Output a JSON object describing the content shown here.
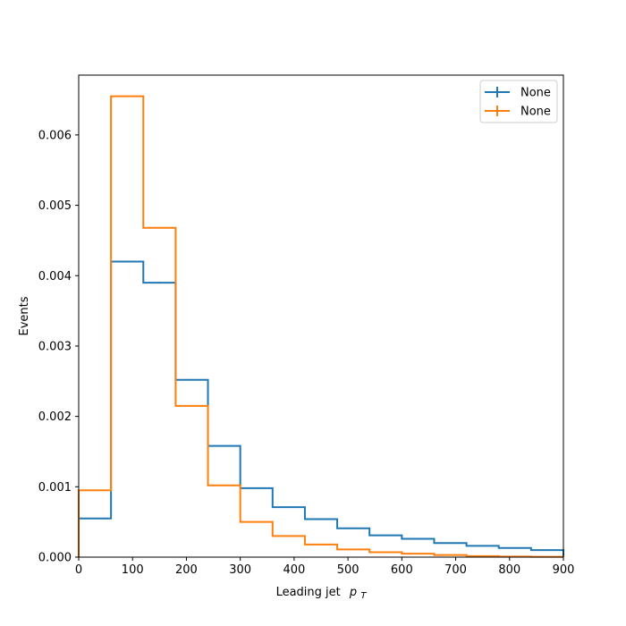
{
  "chart_data": {
    "type": "line",
    "xlabel_main": "Leading jet",
    "xlabel_symbol": "p",
    "xlabel_subscript": "T",
    "ylabel": "Events",
    "xlim": [
      0,
      900
    ],
    "ylim": [
      0,
      0.00685
    ],
    "x_ticks": [
      0,
      100,
      200,
      300,
      400,
      500,
      600,
      700,
      800,
      900
    ],
    "x_tick_labels": [
      "0",
      "100",
      "200",
      "300",
      "400",
      "500",
      "600",
      "700",
      "800",
      "900"
    ],
    "y_ticks": [
      0,
      0.001,
      0.002,
      0.003,
      0.004,
      0.005,
      0.006
    ],
    "y_tick_labels": [
      "0.000",
      "0.001",
      "0.002",
      "0.003",
      "0.004",
      "0.005",
      "0.006"
    ],
    "grid": false,
    "legend_position": "top-right",
    "bin_edges": [
      0,
      60,
      120,
      180,
      240,
      300,
      360,
      420,
      480,
      540,
      600,
      660,
      720,
      780,
      840,
      900
    ],
    "series": [
      {
        "name": "None",
        "color": "#1f77b4",
        "values": [
          0.00055,
          0.0042,
          0.0039,
          0.00252,
          0.00158,
          0.00098,
          0.00071,
          0.00054,
          0.00041,
          0.00031,
          0.00026,
          0.0002,
          0.00016,
          0.00013,
          0.0001
        ],
        "errors": [
          5e-06,
          1.2e-05,
          1.2e-05,
          1e-05,
          8e-06,
          6e-06,
          5e-06,
          5e-06,
          4e-06,
          4e-06,
          3e-06,
          3e-06,
          3e-06,
          2e-06,
          2e-06
        ]
      },
      {
        "name": "None",
        "color": "#ff7f0e",
        "values": [
          0.00095,
          0.00655,
          0.00468,
          0.00215,
          0.00102,
          0.0005,
          0.0003,
          0.00018,
          0.00011,
          7e-05,
          5e-05,
          3e-05,
          1.5e-05,
          8e-06,
          4e-06
        ],
        "errors": [
          0,
          0,
          0,
          0,
          0,
          0,
          0,
          0,
          0,
          0,
          0,
          0,
          0,
          0,
          0
        ]
      }
    ]
  }
}
